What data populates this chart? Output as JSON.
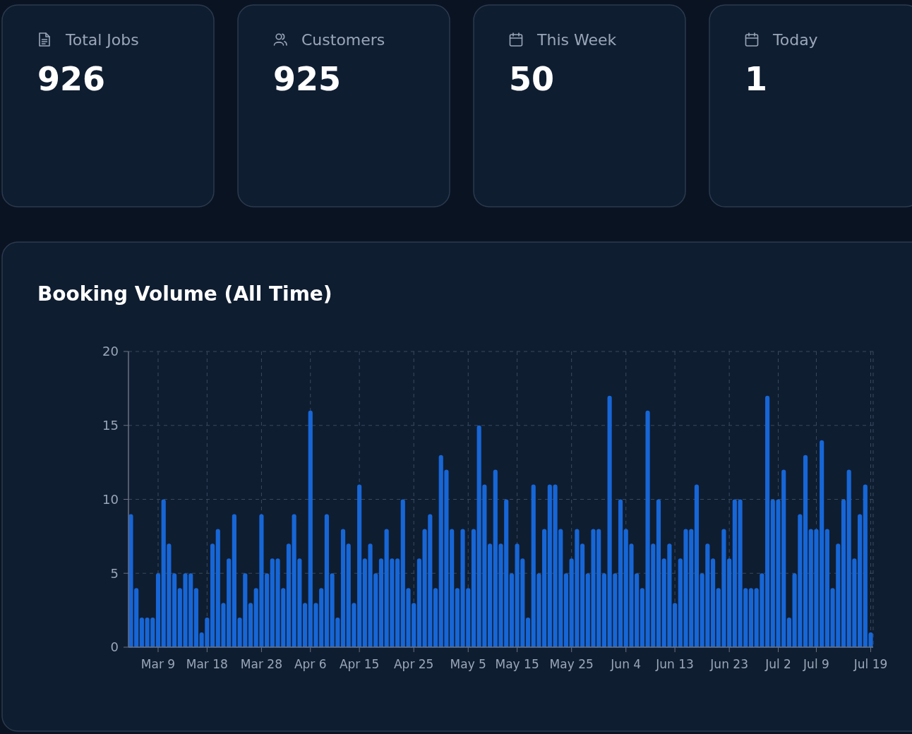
{
  "chart_data": [
    {
      "type": "other",
      "title": "Total Jobs",
      "annotations": [
        "926"
      ]
    },
    {
      "type": "other",
      "title": "Customers",
      "annotations": [
        "925"
      ]
    },
    {
      "type": "other",
      "title": "This Week",
      "annotations": [
        "50"
      ]
    },
    {
      "type": "other",
      "title": "Today",
      "annotations": [
        "1"
      ]
    },
    {
      "type": "bar",
      "title": "Booking Volume (All Time)",
      "color": "#1766d6",
      "ylim": [
        0,
        20
      ],
      "yticks": [
        0,
        5,
        10,
        15,
        20
      ],
      "grid": true,
      "categories": [
        null,
        null,
        null,
        null,
        null,
        "Mar 9",
        null,
        null,
        null,
        null,
        null,
        null,
        null,
        null,
        "Mar 18",
        null,
        null,
        null,
        null,
        null,
        null,
        null,
        null,
        null,
        "Mar 28",
        null,
        null,
        null,
        null,
        null,
        null,
        null,
        null,
        "Apr 6",
        null,
        null,
        null,
        null,
        null,
        null,
        null,
        null,
        "Apr 15",
        null,
        null,
        null,
        null,
        null,
        null,
        null,
        null,
        null,
        "Apr 25",
        null,
        null,
        null,
        null,
        null,
        null,
        null,
        null,
        null,
        "May 5",
        null,
        null,
        null,
        null,
        null,
        null,
        null,
        null,
        "May 15",
        null,
        null,
        null,
        null,
        null,
        null,
        null,
        null,
        null,
        "May 25",
        null,
        null,
        null,
        null,
        null,
        null,
        null,
        null,
        null,
        "Jun 4",
        null,
        null,
        null,
        null,
        null,
        null,
        null,
        null,
        "Jun 13",
        null,
        null,
        null,
        null,
        null,
        null,
        null,
        null,
        null,
        "Jun 23",
        null,
        null,
        null,
        null,
        null,
        null,
        null,
        null,
        "Jul 2",
        null,
        null,
        null,
        null,
        null,
        null,
        "Jul 9",
        null,
        null,
        null,
        null,
        null,
        null,
        null,
        null,
        null,
        "Jul 19"
      ],
      "values": [
        9,
        4,
        2,
        2,
        2,
        5,
        10,
        7,
        5,
        4,
        5,
        5,
        4,
        1,
        2,
        7,
        8,
        3,
        6,
        9,
        2,
        5,
        3,
        4,
        9,
        5,
        6,
        6,
        4,
        7,
        9,
        6,
        3,
        16,
        3,
        4,
        9,
        5,
        2,
        8,
        7,
        3,
        11,
        6,
        7,
        5,
        6,
        8,
        6,
        6,
        10,
        4,
        3,
        6,
        8,
        9,
        4,
        13,
        12,
        8,
        4,
        8,
        4,
        8,
        15,
        11,
        7,
        12,
        7,
        10,
        5,
        7,
        6,
        2,
        11,
        5,
        8,
        11,
        11,
        8,
        5,
        6,
        8,
        7,
        5,
        8,
        8,
        5,
        17,
        5,
        10,
        8,
        7,
        5,
        4,
        16,
        7,
        10,
        6,
        7,
        3,
        6,
        8,
        8,
        11,
        5,
        7,
        6,
        4,
        8,
        6,
        10,
        10,
        4,
        4,
        4,
        5,
        17,
        10,
        10,
        12,
        2,
        5,
        9,
        13,
        8,
        8,
        14,
        8,
        4,
        7,
        10,
        12,
        6,
        9,
        11,
        1
      ]
    }
  ]
}
